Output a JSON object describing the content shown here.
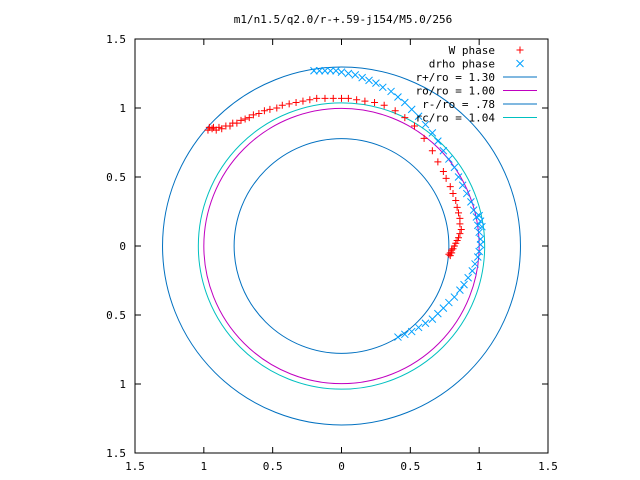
{
  "chart_data": {
    "type": "scatter",
    "title": "m1/n1.5/q2.0/r-+.59-j154/M5.0/256",
    "xlim": [
      -1.5,
      1.5
    ],
    "ylim": [
      -1.5,
      1.5
    ],
    "x_tick_labels": [
      {
        "value": -1.5,
        "label": "1.5"
      },
      {
        "value": -1.0,
        "label": "1"
      },
      {
        "value": -0.5,
        "label": "0.5"
      },
      {
        "value": 0.0,
        "label": "0"
      },
      {
        "value": 0.5,
        "label": "0.5"
      },
      {
        "value": 1.0,
        "label": "1"
      },
      {
        "value": 1.5,
        "label": "1.5"
      }
    ],
    "y_tick_labels": [
      {
        "value": 1.5,
        "label": "1.5"
      },
      {
        "value": 1.0,
        "label": "1"
      },
      {
        "value": 0.5,
        "label": "0.5"
      },
      {
        "value": 0.0,
        "label": "0"
      },
      {
        "value": -0.5,
        "label": "0.5"
      },
      {
        "value": -1.0,
        "label": "1"
      },
      {
        "value": -1.5,
        "label": "1.5"
      }
    ],
    "grid": false,
    "legend_position": "top-right",
    "series": [
      {
        "name": "W phase",
        "kind": "points",
        "marker": "plus",
        "color": "#ff0000",
        "points": [
          [
            -0.94,
            0.85
          ],
          [
            -0.96,
            0.86
          ],
          [
            -0.97,
            0.84
          ],
          [
            -0.93,
            0.86
          ],
          [
            -0.91,
            0.84
          ],
          [
            -0.89,
            0.86
          ],
          [
            -0.87,
            0.85
          ],
          [
            -0.84,
            0.87
          ],
          [
            -0.81,
            0.87
          ],
          [
            -0.79,
            0.89
          ],
          [
            -0.76,
            0.89
          ],
          [
            -0.73,
            0.91
          ],
          [
            -0.7,
            0.92
          ],
          [
            -0.67,
            0.93
          ],
          [
            -0.64,
            0.95
          ],
          [
            -0.6,
            0.96
          ],
          [
            -0.56,
            0.98
          ],
          [
            -0.52,
            0.99
          ],
          [
            -0.47,
            1.0
          ],
          [
            -0.43,
            1.02
          ],
          [
            -0.38,
            1.03
          ],
          [
            -0.33,
            1.04
          ],
          [
            -0.28,
            1.05
          ],
          [
            -0.23,
            1.06
          ],
          [
            -0.18,
            1.07
          ],
          [
            -0.12,
            1.07
          ],
          [
            -0.06,
            1.07
          ],
          [
            0.0,
            1.07
          ],
          [
            0.05,
            1.07
          ],
          [
            0.11,
            1.06
          ],
          [
            0.17,
            1.05
          ],
          [
            0.24,
            1.04
          ],
          [
            0.31,
            1.02
          ],
          [
            0.39,
            0.98
          ],
          [
            0.46,
            0.93
          ],
          [
            0.53,
            0.87
          ],
          [
            0.6,
            0.78
          ],
          [
            0.66,
            0.69
          ],
          [
            0.7,
            0.61
          ],
          [
            0.74,
            0.54
          ],
          [
            0.76,
            0.49
          ],
          [
            0.79,
            0.43
          ],
          [
            0.81,
            0.38
          ],
          [
            0.83,
            0.33
          ],
          [
            0.84,
            0.28
          ],
          [
            0.85,
            0.24
          ],
          [
            0.86,
            0.2
          ],
          [
            0.86,
            0.16
          ],
          [
            0.87,
            0.12
          ],
          [
            0.86,
            0.09
          ],
          [
            0.85,
            0.06
          ],
          [
            0.84,
            0.04
          ],
          [
            0.83,
            0.02
          ],
          [
            0.82,
            0.0
          ],
          [
            0.81,
            -0.02
          ],
          [
            0.8,
            -0.03
          ],
          [
            0.79,
            -0.05
          ],
          [
            0.78,
            -0.06
          ],
          [
            0.79,
            -0.07
          ],
          [
            0.8,
            -0.05
          ]
        ]
      },
      {
        "name": "drho phase",
        "kind": "points",
        "marker": "cross",
        "color": "#00a0ff",
        "points": [
          [
            -0.2,
            1.27
          ],
          [
            -0.16,
            1.27
          ],
          [
            -0.12,
            1.27
          ],
          [
            -0.08,
            1.27
          ],
          [
            -0.04,
            1.27
          ],
          [
            0.0,
            1.26
          ],
          [
            0.05,
            1.25
          ],
          [
            0.1,
            1.24
          ],
          [
            0.15,
            1.22
          ],
          [
            0.2,
            1.2
          ],
          [
            0.25,
            1.18
          ],
          [
            0.3,
            1.15
          ],
          [
            0.36,
            1.12
          ],
          [
            0.41,
            1.08
          ],
          [
            0.46,
            1.04
          ],
          [
            0.51,
            0.99
          ],
          [
            0.56,
            0.94
          ],
          [
            0.61,
            0.88
          ],
          [
            0.66,
            0.82
          ],
          [
            0.7,
            0.76
          ],
          [
            0.74,
            0.69
          ],
          [
            0.78,
            0.63
          ],
          [
            0.82,
            0.57
          ],
          [
            0.85,
            0.5
          ],
          [
            0.88,
            0.44
          ],
          [
            0.91,
            0.38
          ],
          [
            0.94,
            0.32
          ],
          [
            0.96,
            0.26
          ],
          [
            0.98,
            0.21
          ],
          [
            0.99,
            0.15
          ],
          [
            1.0,
            0.1
          ],
          [
            1.01,
            0.05
          ],
          [
            1.01,
            0.01
          ],
          [
            1.0,
            -0.04
          ],
          [
            0.99,
            -0.08
          ],
          [
            0.97,
            -0.13
          ],
          [
            0.95,
            -0.18
          ],
          [
            0.92,
            -0.23
          ],
          [
            0.89,
            -0.28
          ],
          [
            0.86,
            -0.32
          ],
          [
            0.82,
            -0.37
          ],
          [
            0.78,
            -0.41
          ],
          [
            0.74,
            -0.45
          ],
          [
            0.7,
            -0.49
          ],
          [
            0.66,
            -0.53
          ],
          [
            0.61,
            -0.56
          ],
          [
            0.56,
            -0.59
          ],
          [
            0.51,
            -0.62
          ],
          [
            0.46,
            -0.64
          ],
          [
            0.41,
            -0.66
          ],
          [
            1.0,
            0.22
          ],
          [
            1.01,
            0.18
          ],
          [
            1.02,
            0.14
          ]
        ]
      },
      {
        "name": "r+/ro = 1.30",
        "kind": "circle",
        "radius": 1.3,
        "color": "#0070c0"
      },
      {
        "name": "ro/ro = 1.00",
        "kind": "circle",
        "radius": 1.0,
        "color": "#c000c0"
      },
      {
        "name": "r-/ro = .78",
        "kind": "circle",
        "radius": 0.78,
        "color": "#0070c0"
      },
      {
        "name": "rc/ro = 1.04",
        "kind": "circle",
        "radius": 1.04,
        "color": "#00c0c0"
      }
    ]
  }
}
